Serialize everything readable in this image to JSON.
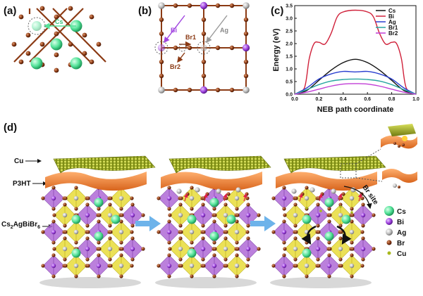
{
  "panels": {
    "a": {
      "label": "(a)",
      "cs_label": "Cs"
    },
    "b": {
      "label": "(b)",
      "bi_label": "Bi",
      "ag_label": "Ag",
      "br1_label": "Br1",
      "br2_label": "Br2"
    },
    "c": {
      "label": "(c)"
    },
    "d": {
      "label": "(d)",
      "cu_label": "Cu",
      "p3ht_label": "P3HT",
      "compound_main": "Cs",
      "compound_sub1": "2",
      "compound_mid": "AgBiBr",
      "compound_sub2": "6",
      "br_site_label": "Br site",
      "legend": [
        {
          "label": "Cs",
          "color": "#55e39a",
          "size": "large"
        },
        {
          "label": "Bi",
          "color": "#a044e0",
          "size": "medium"
        },
        {
          "label": "Ag",
          "color": "#c0c0c0",
          "size": "medium"
        },
        {
          "label": "Br",
          "color": "#8b3a14",
          "size": "small"
        },
        {
          "label": "Cu",
          "color": "#a8b81c",
          "size": "tiny"
        }
      ]
    }
  },
  "colors": {
    "cs": "#55e39a",
    "bi": "#a044e0",
    "ag": "#c0c0c0",
    "br": "#8b3a14",
    "cu": "#a8b81c",
    "p3ht": "#f08a3c",
    "octa_purple": "#b06ad6",
    "octa_yellow": "#e8dc3a",
    "arrow_blue": "#6db3ea"
  },
  "chart_data": {
    "type": "line",
    "title": "",
    "xlabel": "NEB path coordinate",
    "ylabel": "Energy (eV)",
    "xlim": [
      0,
      1.0
    ],
    "ylim": [
      0,
      3.5
    ],
    "xticks": [
      "0.0",
      "0.2",
      "0.4",
      "0.6",
      "0.8",
      "1.0"
    ],
    "yticks": [
      "0.0",
      "0.5",
      "1.0",
      "1.5",
      "2.0",
      "2.5",
      "3.0",
      "3.5"
    ],
    "legend_position": "top-right",
    "series": [
      {
        "name": "Cs",
        "color": "#111111",
        "x": [
          0,
          0.1,
          0.2,
          0.3,
          0.4,
          0.5,
          0.6,
          0.7,
          0.8,
          0.9,
          1.0
        ],
        "y": [
          0,
          0.15,
          0.55,
          0.95,
          1.25,
          1.38,
          1.25,
          0.95,
          0.55,
          0.15,
          0
        ]
      },
      {
        "name": "Bi",
        "color": "#d0213a",
        "x": [
          0,
          0.08,
          0.12,
          0.16,
          0.2,
          0.25,
          0.3,
          0.35,
          0.4,
          0.5,
          0.6,
          0.65,
          0.7,
          0.75,
          0.8,
          0.84,
          0.88,
          0.92,
          1.0
        ],
        "y": [
          0,
          0.25,
          1.4,
          2.0,
          2.05,
          1.98,
          2.4,
          3.05,
          3.25,
          3.32,
          3.25,
          3.05,
          2.4,
          1.98,
          2.05,
          2.0,
          1.4,
          0.25,
          0
        ]
      },
      {
        "name": "Ag",
        "color": "#2a3fd0",
        "x": [
          0,
          0.1,
          0.2,
          0.3,
          0.4,
          0.5,
          0.6,
          0.7,
          0.8,
          0.9,
          1.0
        ],
        "y": [
          0,
          0.25,
          0.6,
          0.8,
          0.9,
          0.88,
          0.9,
          0.8,
          0.6,
          0.25,
          0
        ]
      },
      {
        "name": "Br1",
        "color": "#27a6a0",
        "x": [
          0,
          0.1,
          0.2,
          0.3,
          0.4,
          0.5,
          0.6,
          0.7,
          0.8,
          0.9,
          1.0
        ],
        "y": [
          0,
          0.18,
          0.38,
          0.52,
          0.58,
          0.6,
          0.58,
          0.52,
          0.38,
          0.18,
          0
        ]
      },
      {
        "name": "Br2",
        "color": "#c13ed6",
        "x": [
          0,
          0.1,
          0.2,
          0.3,
          0.4,
          0.5,
          0.6,
          0.7,
          0.8,
          0.9,
          1.0
        ],
        "y": [
          0,
          0.08,
          0.2,
          0.32,
          0.4,
          0.42,
          0.4,
          0.32,
          0.2,
          0.08,
          0
        ]
      }
    ]
  }
}
